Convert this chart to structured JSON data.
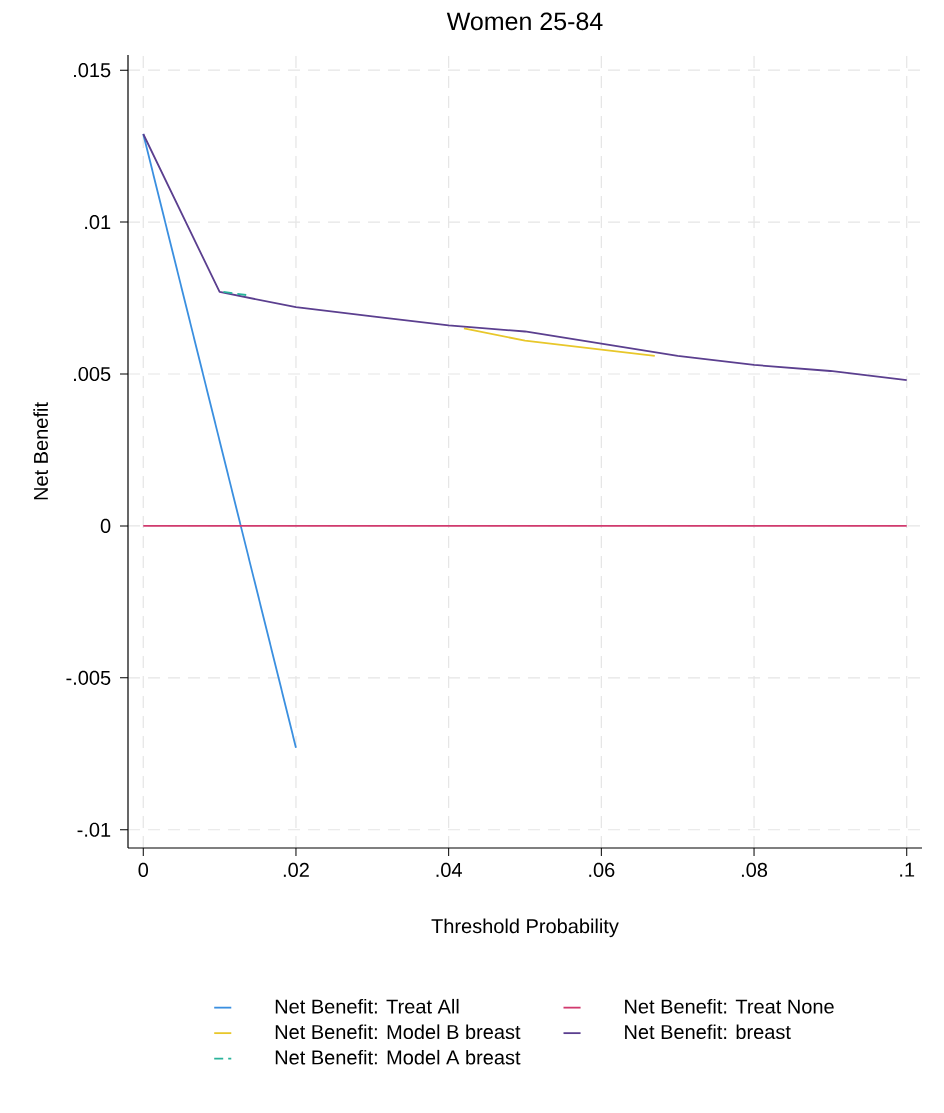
{
  "chart_data": {
    "type": "line",
    "title": "Women 25-84",
    "xlabel": "Threshold Probability",
    "ylabel": "Net Benefit",
    "x": [
      0,
      0.01,
      0.02,
      0.03,
      0.04,
      0.05,
      0.06,
      0.07,
      0.08,
      0.09,
      0.1
    ],
    "series": [
      {
        "name": "Net Benefit: Treat All",
        "color": "#3a8fe0",
        "x": [
          0,
          0.02
        ],
        "values": [
          0.0129,
          -0.0073
        ]
      },
      {
        "name": "Net Benefit: Treat None",
        "color": "#d13a6e",
        "x": [
          0,
          0.1
        ],
        "values": [
          0,
          0
        ]
      },
      {
        "name": "Net Benefit: Model A breast",
        "color": "#2ab39a",
        "line_style": "dashed",
        "x": [
          0.0105,
          0.0135
        ],
        "values": [
          0.0077,
          0.0076
        ]
      },
      {
        "name": "Net Benefit: Model B breast",
        "color": "#e8c72a",
        "x": [
          0.042,
          0.05,
          0.06,
          0.067
        ],
        "values": [
          0.0065,
          0.0061,
          0.0058,
          0.0056
        ]
      },
      {
        "name": "Net Benefit: breast",
        "color": "#5b3f8f",
        "values": [
          0.0129,
          0.0077,
          0.0072,
          0.0069,
          0.0066,
          0.0064,
          0.006,
          0.0056,
          0.0053,
          0.0051,
          0.0048
        ]
      }
    ],
    "xlim": [
      -0.002,
      0.102
    ],
    "ylim": [
      -0.0106,
      0.0155
    ],
    "xticks": [
      0,
      {
        "value": 0.02,
        "label": ".02"
      },
      {
        "value": 0.04,
        "label": ".04"
      },
      {
        "value": 0.06,
        "label": ".06"
      },
      {
        "value": 0.08,
        "label": ".08"
      },
      {
        "value": 0.1,
        "label": ".1"
      }
    ],
    "yticks": [
      {
        "value": -0.01,
        "label": "-.01"
      },
      {
        "value": -0.005,
        "label": "-.005"
      },
      0,
      {
        "value": 0.005,
        "label": ".005"
      },
      {
        "value": 0.01,
        "label": ".01"
      },
      {
        "value": 0.015,
        "label": ".015"
      }
    ],
    "grid": true,
    "legend": "bottom",
    "marker": "none",
    "line_style": "solid"
  }
}
